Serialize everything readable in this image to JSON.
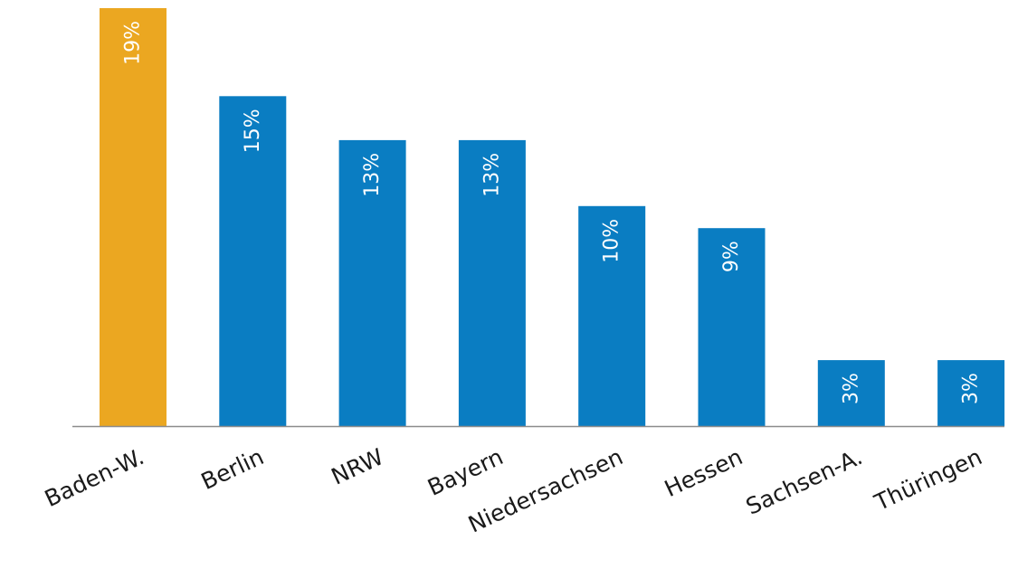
{
  "chart_data": {
    "type": "bar",
    "categories": [
      "Baden-W.",
      "Berlin",
      "NRW",
      "Bayern",
      "Niedersachsen",
      "Hessen",
      "Sachsen-A.",
      "Thüringen"
    ],
    "values": [
      19,
      15,
      13,
      13,
      10,
      9,
      3,
      3
    ],
    "value_labels": [
      "19%",
      "15%",
      "13%",
      "13%",
      "10%",
      "9%",
      "3%",
      "3%"
    ],
    "title": "",
    "xlabel": "",
    "ylabel": "",
    "ylim": [
      0,
      19
    ],
    "grid": false,
    "legend": "none",
    "colors": {
      "highlight": "#EBA721",
      "default": "#0A7DC2",
      "axis": "#8c8c8c",
      "category_text": "#1a1a1a",
      "label_text": "#ffffff"
    },
    "highlight_index": 0
  }
}
